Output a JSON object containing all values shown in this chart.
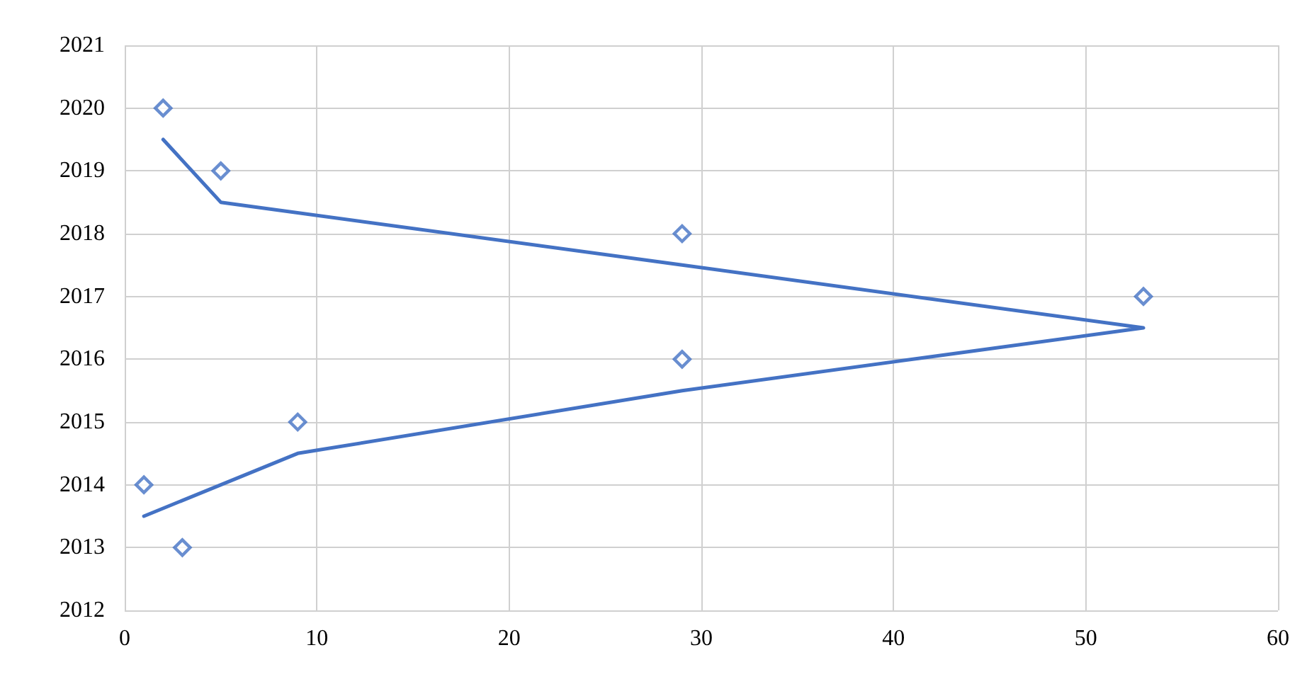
{
  "chart_data": {
    "type": "scatter",
    "marker": "diamond",
    "grid": true,
    "xlim": [
      0,
      60
    ],
    "xticks": [
      0,
      10,
      20,
      30,
      40,
      50,
      60
    ],
    "ylim": [
      2012,
      2021
    ],
    "yticks": [
      2012,
      2013,
      2014,
      2015,
      2016,
      2017,
      2018,
      2019,
      2020,
      2021
    ],
    "series": [
      {
        "color": "#4472c4",
        "x": [
          3,
          1,
          9,
          29,
          53,
          29,
          5,
          2
        ],
        "values": [
          2013,
          2014,
          2015,
          2016,
          2017,
          2018,
          2019,
          2020
        ]
      },
      {
        "type": "line",
        "color": "#4472c4",
        "marker": "none",
        "line_style": "solid",
        "x": [
          1,
          9,
          29,
          53,
          29,
          5,
          2
        ],
        "values": [
          2013.5,
          2014.5,
          2015.5,
          2016.5,
          2017.5,
          2018.5,
          2019.5
        ]
      }
    ]
  }
}
